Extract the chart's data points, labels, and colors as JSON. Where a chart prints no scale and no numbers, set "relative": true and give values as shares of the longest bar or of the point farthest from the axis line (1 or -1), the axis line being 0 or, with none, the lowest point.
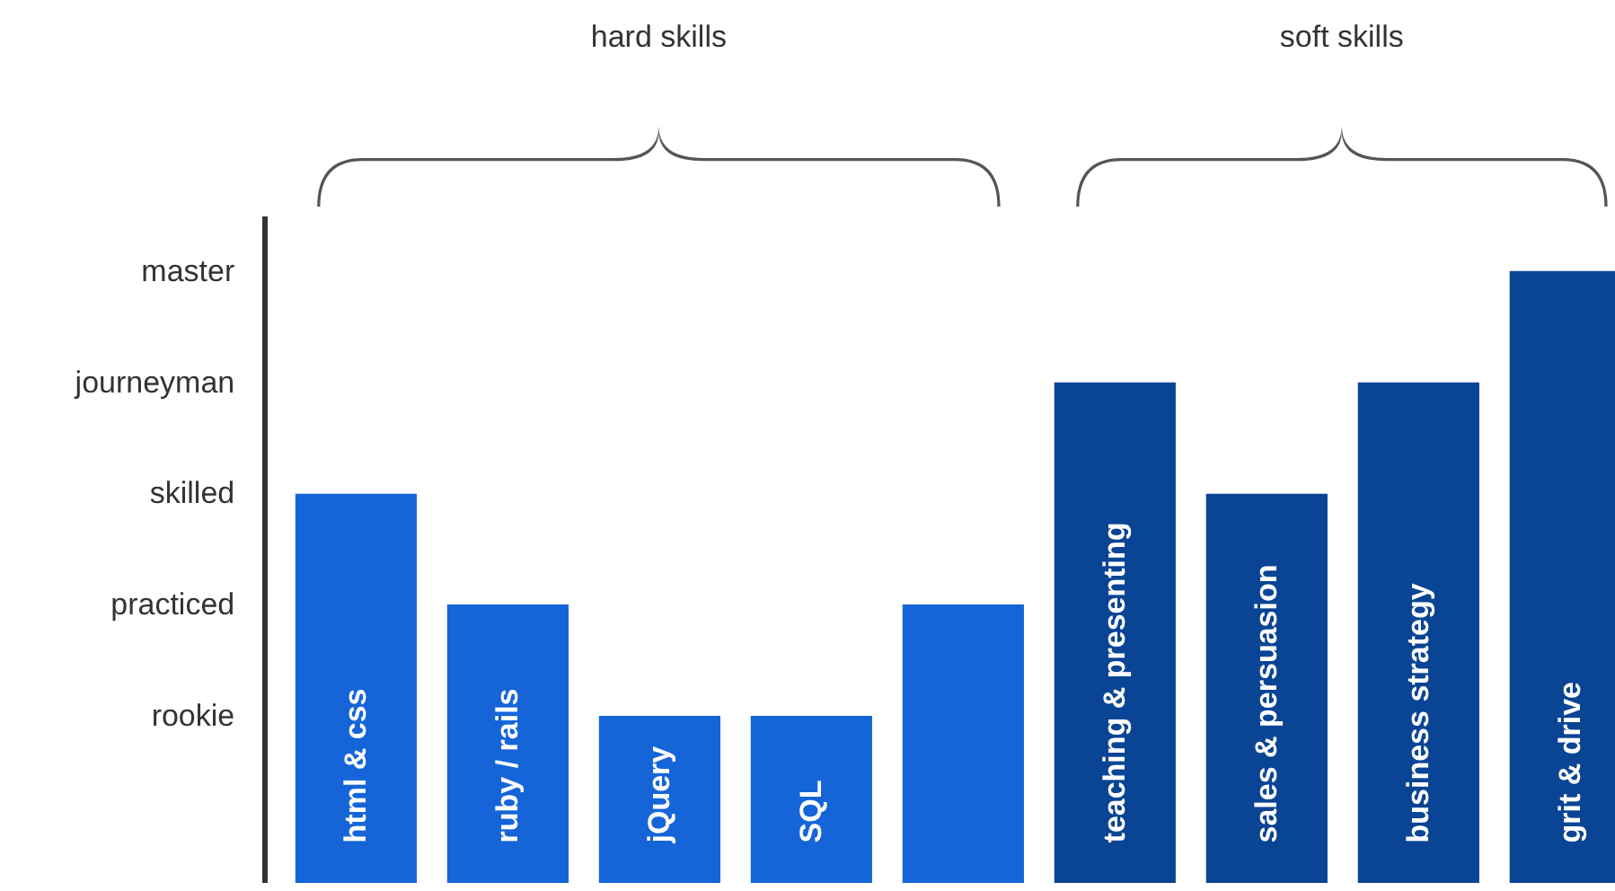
{
  "chart_data": {
    "type": "bar",
    "relative": true,
    "categories": [
      "html & css",
      "ruby / rails",
      "jQuery",
      "SQL",
      null,
      "teaching & presenting",
      "sales & persuasion",
      "business strategy",
      "grit & drive"
    ],
    "values": [
      0.636,
      0.455,
      0.273,
      0.273,
      0.455,
      0.818,
      0.636,
      0.818,
      1
    ],
    "colors": [
      "#1565d8",
      "#1565d8",
      "#1565d8",
      "#1565d8",
      "#1565d8",
      "#0a4494",
      "#0a4494",
      "#0a4494",
      "#0a4494"
    ],
    "annotations": [
      "hard skills",
      "soft skills",
      "rookie",
      "practiced",
      "skilled",
      "journeyman",
      "master"
    ],
    "grid": false
  }
}
